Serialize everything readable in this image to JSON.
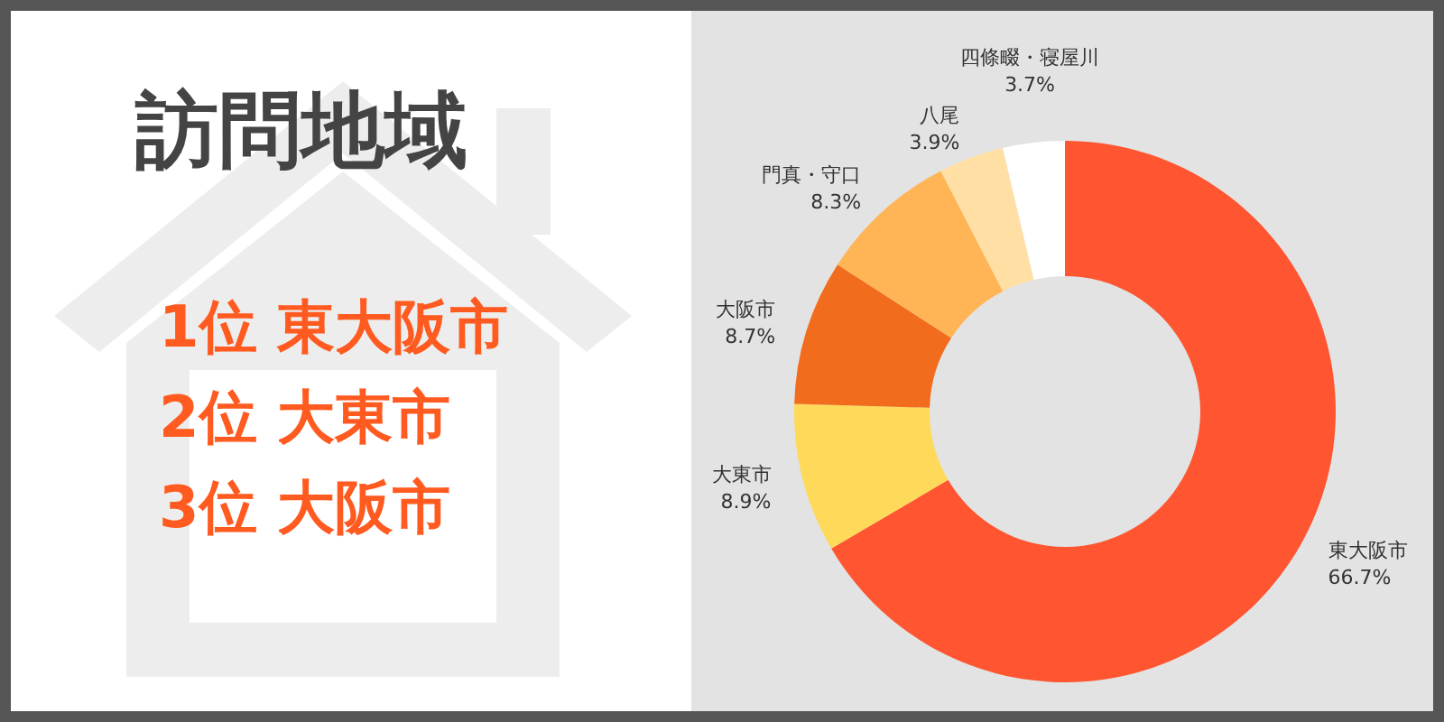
{
  "chart_data": {
    "type": "donut",
    "title": "訪問地域",
    "annotations": [
      "1位 東大阪市",
      "2位 大東市",
      "3位 大阪市"
    ],
    "categories": [
      "東大阪市",
      "大東市",
      "大阪市",
      "門真・守口",
      "八尾",
      "四條畷・寝屋川"
    ],
    "values": [
      66.7,
      8.9,
      8.7,
      8.3,
      3.9,
      3.7
    ],
    "colors": [
      "#ff5530",
      "#ffd95a",
      "#f26c1d",
      "#ffb555",
      "#ffdfa3",
      "#ffffff"
    ],
    "value_labels": [
      "66.7%",
      "8.9%",
      "8.7%",
      "8.3%",
      "3.9%",
      "3.7%"
    ]
  }
}
